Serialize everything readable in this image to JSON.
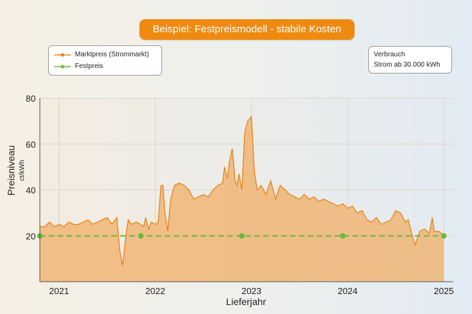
{
  "header": {
    "title": "Beispiel: Festpreismodell - stabile Kosten"
  },
  "legend": [
    {
      "label": "Marktpreis (Strommarkt)",
      "color": "#e8831a"
    },
    {
      "label": "Festpreis",
      "color": "#6ab83c"
    }
  ],
  "info_box": {
    "title": "Verbrauch",
    "text": "Strom ab 30.000 kWh"
  },
  "chart_data": {
    "type": "area",
    "xlabel": "Lieferjahr",
    "ylabel": "Preisniveau",
    "ylabel_unit": "ct/kWh",
    "xlim": [
      2020.8,
      2025.1
    ],
    "ylim": [
      0,
      80
    ],
    "x_ticks": [
      "2021",
      "2022",
      "2023",
      "2024",
      "2025"
    ],
    "y_ticks": [
      "20",
      "40",
      "60",
      "80"
    ],
    "grid": true,
    "colors": {
      "market_line": "#e8831a",
      "market_fill": "#f0b676",
      "fixed": "#6ab83c"
    },
    "series": [
      {
        "name": "Marktpreis (Strommarkt)",
        "x": [
          2020.8,
          2020.85,
          2020.9,
          2020.95,
          2021.0,
          2021.05,
          2021.1,
          2021.15,
          2021.2,
          2021.25,
          2021.3,
          2021.35,
          2021.4,
          2021.45,
          2021.5,
          2021.55,
          2021.6,
          2021.63,
          2021.66,
          2021.7,
          2021.72,
          2021.75,
          2021.8,
          2021.85,
          2021.88,
          2021.9,
          2021.93,
          2021.96,
          2022.0,
          2022.03,
          2022.06,
          2022.08,
          2022.1,
          2022.13,
          2022.16,
          2022.2,
          2022.25,
          2022.3,
          2022.35,
          2022.4,
          2022.45,
          2022.5,
          2022.55,
          2022.6,
          2022.65,
          2022.7,
          2022.72,
          2022.75,
          2022.77,
          2022.8,
          2022.83,
          2022.85,
          2022.87,
          2022.9,
          2022.93,
          2022.96,
          2023.0,
          2023.03,
          2023.06,
          2023.1,
          2023.15,
          2023.2,
          2023.25,
          2023.3,
          2023.35,
          2023.4,
          2023.45,
          2023.5,
          2023.55,
          2023.6,
          2023.65,
          2023.7,
          2023.75,
          2023.8,
          2023.85,
          2023.9,
          2023.95,
          2024.0,
          2024.05,
          2024.1,
          2024.15,
          2024.2,
          2024.25,
          2024.3,
          2024.35,
          2024.4,
          2024.45,
          2024.5,
          2024.55,
          2024.6,
          2024.63,
          2024.66,
          2024.7,
          2024.75,
          2024.8,
          2024.85,
          2024.88,
          2024.9,
          2024.95,
          2025.0
        ],
        "values": [
          24,
          24,
          26,
          24,
          25,
          24,
          26,
          25,
          25,
          26,
          27,
          25,
          26,
          27,
          28,
          25,
          28,
          14,
          7,
          22,
          27,
          25,
          26,
          25,
          24,
          28,
          23,
          26,
          25,
          26,
          42,
          42,
          30,
          22,
          36,
          42,
          43,
          42,
          40,
          36,
          37,
          38,
          37,
          40,
          42,
          43,
          50,
          45,
          52,
          58,
          44,
          42,
          47,
          40,
          65,
          70,
          72,
          48,
          40,
          42,
          38,
          44,
          36,
          42,
          40,
          38,
          37,
          36,
          38,
          36,
          37,
          35,
          36,
          35,
          34,
          33,
          34,
          32,
          33,
          30,
          31,
          27,
          26,
          28,
          25,
          26,
          27,
          31,
          30,
          26,
          27,
          22,
          16,
          22,
          23,
          21,
          28,
          22,
          22,
          20
        ]
      },
      {
        "name": "Festpreis",
        "x": [
          2020.8,
          2021.85,
          2022.9,
          2023.95,
          2025.0
        ],
        "values": [
          20,
          20,
          20,
          20,
          20
        ]
      }
    ]
  }
}
